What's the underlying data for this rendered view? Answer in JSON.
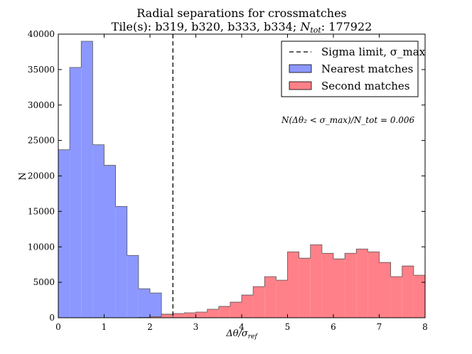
{
  "chart_data": {
    "type": "histogram",
    "title_line1": "Radial separations for crossmatches",
    "title_line2": "Tile(s): b319, b320, b333, b334; N_tot: 177922",
    "xlabel": "Δθ/σ_ref",
    "ylabel": "N",
    "xlim": [
      0,
      8
    ],
    "ylim": [
      0,
      40000
    ],
    "x_ticks": [
      "0",
      "1",
      "2",
      "3",
      "4",
      "5",
      "6",
      "7",
      "8"
    ],
    "y_ticks": [
      "0",
      "5000",
      "10000",
      "15000",
      "20000",
      "25000",
      "30000",
      "35000",
      "40000"
    ],
    "bin_width": 0.25,
    "bin_start": 0,
    "series": [
      {
        "name": "Nearest matches",
        "color": "#8c98ff",
        "values": [
          23700,
          35300,
          39000,
          24400,
          21500,
          15700,
          8800,
          4100,
          3500,
          500,
          0,
          0,
          0,
          0,
          0,
          0,
          0,
          0,
          0,
          0,
          0,
          0,
          0,
          0,
          0,
          0,
          0,
          0,
          0,
          0,
          0,
          0
        ]
      },
      {
        "name": "Second matches",
        "color": "#ff8088",
        "values": [
          0,
          0,
          0,
          0,
          0,
          0,
          0,
          50,
          150,
          500,
          600,
          700,
          800,
          1200,
          1600,
          2200,
          3200,
          4400,
          5800,
          5300,
          9300,
          8400,
          10300,
          9100,
          8300,
          9100,
          9700,
          9300,
          7800,
          5800,
          7300,
          6000
        ]
      }
    ],
    "sigma_limit": 2.5,
    "legend": {
      "position": "top-right",
      "entries": [
        "Sigma limit, σ_max",
        "Nearest matches",
        "Second matches"
      ]
    },
    "annotation": "N(Δθ₂ < σ_max)/N_tot = 0.006"
  }
}
